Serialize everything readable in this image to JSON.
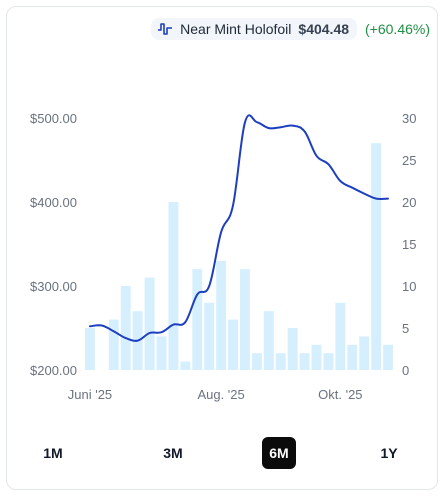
{
  "legend": {
    "name": "Near Mint Holofoil",
    "price": "$404.48",
    "change": "(+60.46%)",
    "icon": "price-line-icon"
  },
  "colors": {
    "line": "#1d3fbf",
    "bar": "#d5efff",
    "grid": "#eef0f3",
    "active_range_bg": "#0b0b0b",
    "change_positive": "#1f8f43"
  },
  "ranges": [
    {
      "label": "1M",
      "active": false
    },
    {
      "label": "3M",
      "active": false
    },
    {
      "label": "6M",
      "active": true
    },
    {
      "label": "1Y",
      "active": false
    }
  ],
  "chart_data": {
    "type": "line",
    "title": "",
    "y_left": {
      "min": 200,
      "max": 500,
      "ticks": [
        "$200.00",
        "$300.00",
        "$400.00",
        "$500.00"
      ],
      "tick_values": [
        200,
        300,
        400,
        500
      ]
    },
    "y_right": {
      "min": 0,
      "max": 30,
      "ticks": [
        "0",
        "5",
        "10",
        "15",
        "20",
        "25",
        "30"
      ],
      "tick_values": [
        0,
        5,
        10,
        15,
        20,
        25,
        30
      ]
    },
    "x_ticks": [
      {
        "label": "Juni '25",
        "index": 0
      },
      {
        "label": "Aug. '25",
        "index": 11
      },
      {
        "label": "Okt. '25",
        "index": 21
      }
    ],
    "series": [
      {
        "name": "Near Mint Holofoil",
        "kind": "line",
        "axis": "left",
        "values": [
          252,
          253,
          246,
          238,
          235,
          244,
          245,
          254,
          257,
          290,
          300,
          364,
          396,
          495,
          495,
          488,
          489,
          491,
          484,
          455,
          445,
          425,
          417,
          410,
          404,
          404
        ]
      },
      {
        "name": "",
        "kind": "bar",
        "axis": "right",
        "values": [
          5,
          0,
          6,
          10,
          7,
          11,
          4,
          20,
          1,
          12,
          8,
          13,
          6,
          12,
          2,
          7,
          2,
          5,
          2,
          3,
          2,
          8,
          3,
          4,
          27,
          3
        ]
      }
    ],
    "grid": false,
    "legend_position": "top-right"
  }
}
